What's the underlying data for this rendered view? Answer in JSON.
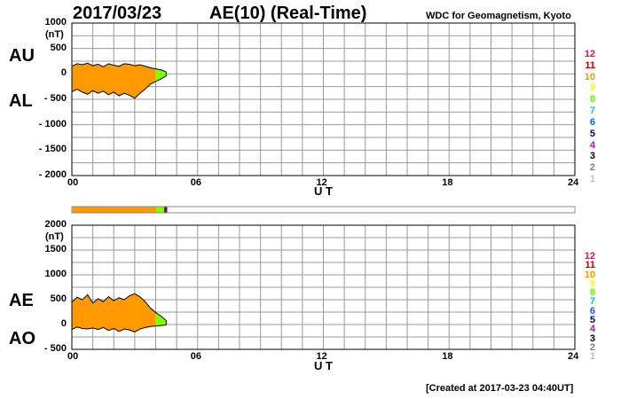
{
  "header": {
    "date": "2017/03/23",
    "title": "AE(10) (Real-Time)",
    "source": "WDC for Geomagnetism, Kyoto"
  },
  "footer": {
    "created": "[Created at 2017-03-23 04:40UT]"
  },
  "colors": {
    "orange": "#ff9900",
    "green": "#7fff00",
    "purple": "#800080",
    "grid": "#999999",
    "counts": [
      "#c0c0c0",
      "#808080",
      "#000000",
      "#cc00cc",
      "#000099",
      "#0066ff",
      "#00cccc",
      "#66ff00",
      "#ffff00",
      "#ff9900",
      "#cc0000",
      "#ff0066"
    ]
  },
  "chart_data": [
    {
      "type": "area",
      "labels": {
        "upper": "AU",
        "lower": "AL",
        "unit": "(nT)",
        "xlabel": "U T"
      },
      "ylim": [
        -2000,
        1000
      ],
      "yticks": [
        {
          "v": 1000,
          "t": "1000"
        },
        {
          "v": 500,
          "t": "500"
        },
        {
          "v": 0,
          "t": "0"
        },
        {
          "v": -500,
          "t": "- 500"
        },
        {
          "v": -1000,
          "t": "- 1000"
        },
        {
          "v": -1500,
          "t": "- 1500"
        },
        {
          "v": -2000,
          "t": "- 2000"
        }
      ],
      "xlim": [
        0,
        24
      ],
      "xticks": [
        {
          "v": 0,
          "t": "00"
        },
        {
          "v": 6,
          "t": "06"
        },
        {
          "v": 12,
          "t": "12"
        },
        {
          "v": 18,
          "t": "18"
        },
        {
          "v": 24,
          "t": "24"
        }
      ],
      "grid": true,
      "time_hours": [
        0,
        0.25,
        0.5,
        0.75,
        1,
        1.25,
        1.5,
        1.75,
        2,
        2.25,
        2.5,
        2.75,
        3,
        3.25,
        3.5,
        3.75,
        4,
        4.25,
        4.5
      ],
      "series": [
        {
          "values": [
            150,
            200,
            180,
            210,
            160,
            190,
            140,
            200,
            170,
            150,
            200,
            190,
            160,
            180,
            150,
            120,
            100,
            80,
            40
          ]
        },
        {
          "values": [
            -350,
            -300,
            -360,
            -400,
            -330,
            -380,
            -340,
            -410,
            -360,
            -430,
            -380,
            -420,
            -480,
            -380,
            -300,
            -200,
            -150,
            -100,
            -40
          ]
        }
      ],
      "activity_colors": [
        "orange",
        "orange",
        "orange",
        "orange",
        "orange",
        "orange",
        "orange",
        "orange",
        "orange",
        "orange",
        "orange",
        "orange",
        "orange",
        "orange",
        "orange",
        "orange",
        "green",
        "green",
        "green"
      ],
      "station_counts": [
        "12",
        "11",
        "10",
        "9",
        "8",
        "7",
        "6",
        "5",
        "4",
        "3",
        "2",
        "1"
      ]
    },
    {
      "type": "area",
      "labels": {
        "upper": "AE",
        "lower": "AO",
        "unit": "(nT)",
        "xlabel": "U T"
      },
      "ylim": [
        -500,
        2000
      ],
      "yticks": [
        {
          "v": 2000,
          "t": "2000"
        },
        {
          "v": 1500,
          "t": "1500"
        },
        {
          "v": 1000,
          "t": "1000"
        },
        {
          "v": 500,
          "t": "500"
        },
        {
          "v": 0,
          "t": "0"
        },
        {
          "v": -500,
          "t": "- 500"
        }
      ],
      "xlim": [
        0,
        24
      ],
      "xticks": [
        {
          "v": 0,
          "t": "00"
        },
        {
          "v": 6,
          "t": "06"
        },
        {
          "v": 12,
          "t": "12"
        },
        {
          "v": 18,
          "t": "18"
        },
        {
          "v": 24,
          "t": "24"
        }
      ],
      "grid": true,
      "time_hours": [
        0,
        0.25,
        0.5,
        0.75,
        1,
        1.25,
        1.5,
        1.75,
        2,
        2.25,
        2.5,
        2.75,
        3,
        3.25,
        3.5,
        3.75,
        4,
        4.25,
        4.5
      ],
      "series": [
        {
          "values": [
            450,
            550,
            500,
            600,
            430,
            520,
            460,
            560,
            480,
            540,
            500,
            580,
            620,
            560,
            460,
            330,
            240,
            170,
            80
          ]
        },
        {
          "values": [
            -100,
            -50,
            -80,
            -90,
            -70,
            -100,
            -60,
            -120,
            -80,
            -140,
            -90,
            -110,
            -150,
            -90,
            -60,
            -40,
            -30,
            -20,
            -10
          ]
        }
      ],
      "activity_colors": [
        "orange",
        "orange",
        "orange",
        "orange",
        "orange",
        "orange",
        "orange",
        "orange",
        "orange",
        "orange",
        "orange",
        "orange",
        "orange",
        "orange",
        "orange",
        "orange",
        "green",
        "green",
        "green"
      ],
      "station_counts": [
        "12",
        "11",
        "10",
        "9",
        "8",
        "7",
        "6",
        "5",
        "4",
        "3",
        "2",
        "1"
      ]
    }
  ],
  "status_bar": {
    "segments": [
      {
        "from": 0,
        "to": 4.0,
        "color": "orange"
      },
      {
        "from": 4.0,
        "to": 4.4,
        "color": "green"
      },
      {
        "from": 4.4,
        "to": 4.55,
        "color": "purple"
      }
    ]
  }
}
